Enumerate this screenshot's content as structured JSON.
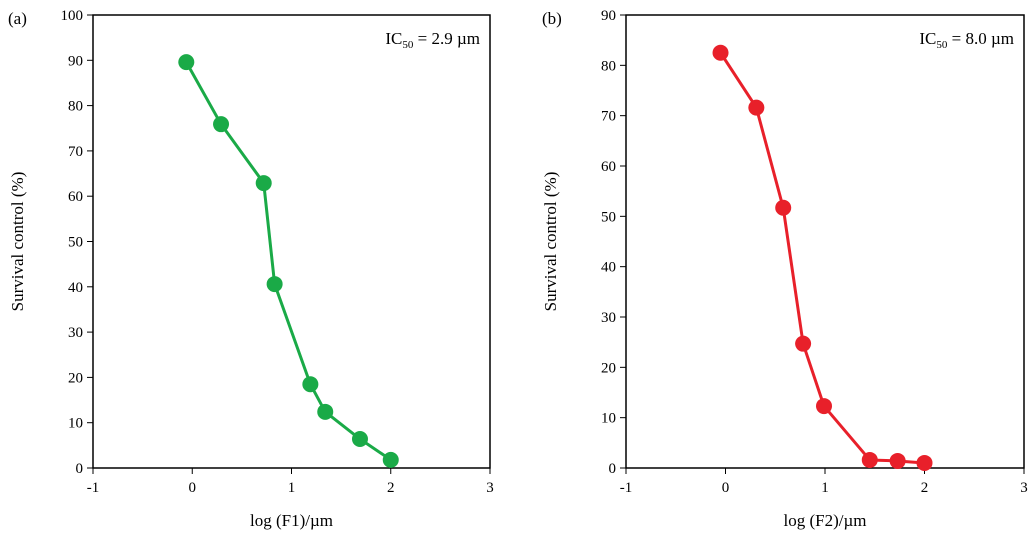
{
  "chart_data": [
    {
      "type": "line",
      "panel_label": "(a)",
      "annotation": {
        "prefix": "IC",
        "sub": "50",
        "suffix": " = 2.9 µm"
      },
      "xlabel": "log (F1)/µm",
      "ylabel": "Survival control (%)",
      "xlim": [
        -1,
        3
      ],
      "ylim": [
        0,
        100
      ],
      "xticks": [
        -1,
        0,
        1,
        2,
        3
      ],
      "yticks": [
        0,
        10,
        20,
        30,
        40,
        50,
        60,
        70,
        80,
        90,
        100
      ],
      "grid": false,
      "color": "#1aaa47",
      "x": [
        -0.06,
        0.29,
        0.72,
        0.83,
        1.19,
        1.34,
        1.69,
        2.0
      ],
      "y": [
        89.6,
        75.9,
        62.9,
        40.6,
        18.5,
        12.4,
        6.4,
        1.8
      ]
    },
    {
      "type": "line",
      "panel_label": "(b)",
      "annotation": {
        "prefix": "IC",
        "sub": "50",
        "suffix": " = 8.0 µm"
      },
      "xlabel": "log (F2)/µm",
      "ylabel": "Survival control (%)",
      "xlim": [
        -1,
        3
      ],
      "ylim": [
        0,
        90
      ],
      "xticks": [
        -1,
        0,
        1,
        2,
        3
      ],
      "yticks": [
        0,
        10,
        20,
        30,
        40,
        50,
        60,
        70,
        80,
        90
      ],
      "grid": false,
      "color": "#e8202a",
      "x": [
        -0.05,
        0.31,
        0.58,
        0.78,
        0.99,
        1.45,
        1.73,
        2.0
      ],
      "y": [
        82.5,
        71.6,
        51.7,
        24.7,
        12.3,
        1.6,
        1.4,
        1.0
      ]
    }
  ]
}
